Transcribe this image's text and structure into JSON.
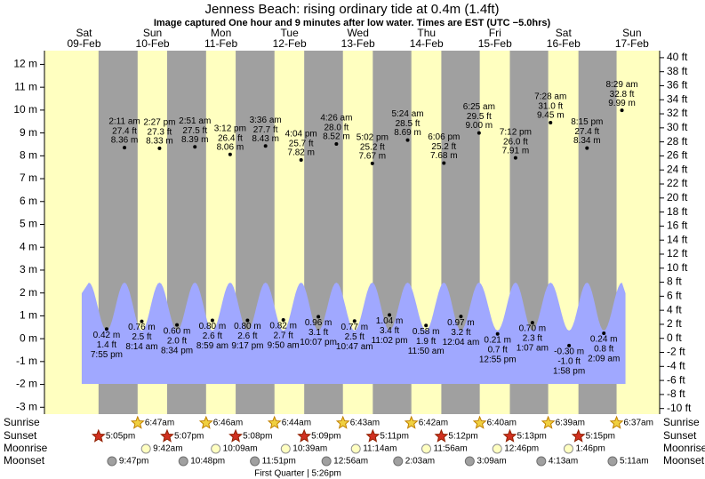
{
  "chart_data": {
    "type": "tide",
    "title": "Jenness Beach: rising  ordinary tide at 0.4m (1.4ft)",
    "subtitle": "Image captured One hour and 9 minutes after low water. Times are EST (UTC −5.0hrs)",
    "ylim": [
      -3.3,
      12.6
    ],
    "yticks": [
      {
        "value": 12,
        "label": "12 m"
      },
      {
        "value": 11,
        "label": "11 m"
      },
      {
        "value": 10,
        "label": "10 m"
      },
      {
        "value": 9,
        "label": "9 m"
      },
      {
        "value": 8,
        "label": "8 m"
      },
      {
        "value": 7,
        "label": "7 m"
      },
      {
        "value": 6,
        "label": "6 m"
      },
      {
        "value": 5,
        "label": "5 m"
      },
      {
        "value": 4,
        "label": "4 m"
      },
      {
        "value": 3,
        "label": "3 m"
      },
      {
        "value": 2,
        "label": "2 m"
      },
      {
        "value": 1,
        "label": "1 m"
      },
      {
        "value": 0,
        "label": "0 m"
      },
      {
        "value": -1,
        "label": "-1 m"
      },
      {
        "value": -2,
        "label": "-2 m"
      },
      {
        "value": -3,
        "label": "-3 m"
      }
    ],
    "y2lim": [
      -10.8,
      41.0
    ],
    "y2ticks": [
      {
        "value": 40,
        "label": "40 ft"
      },
      {
        "value": 38,
        "label": "38 ft"
      },
      {
        "value": 36,
        "label": "36 ft"
      },
      {
        "value": 34,
        "label": "34 ft"
      },
      {
        "value": 32,
        "label": "32 ft"
      },
      {
        "value": 30,
        "label": "30 ft"
      },
      {
        "value": 28,
        "label": "28 ft"
      },
      {
        "value": 26,
        "label": "26 ft"
      },
      {
        "value": 24,
        "label": "24 ft"
      },
      {
        "value": 22,
        "label": "22 ft"
      },
      {
        "value": 20,
        "label": "20 ft"
      },
      {
        "value": 18,
        "label": "18 ft"
      },
      {
        "value": 16,
        "label": "16 ft"
      },
      {
        "value": 14,
        "label": "14 ft"
      },
      {
        "value": 12,
        "label": "12 ft"
      },
      {
        "value": 10,
        "label": "10 ft"
      },
      {
        "value": 8,
        "label": "8 ft"
      },
      {
        "value": 6,
        "label": "6 ft"
      },
      {
        "value": 4,
        "label": "4 ft"
      },
      {
        "value": 2,
        "label": "2 ft"
      },
      {
        "value": 0,
        "label": "0 ft"
      },
      {
        "value": -2,
        "label": "-2 ft"
      },
      {
        "value": -4,
        "label": "-4 ft"
      },
      {
        "value": -6,
        "label": "-6 ft"
      },
      {
        "value": -8,
        "label": "-8 ft"
      },
      {
        "value": -10,
        "label": "-10 ft"
      }
    ],
    "row_labels": {
      "sunrise": "Sunrise",
      "sunset": "Sunset",
      "moonrise": "Moonrise",
      "moonset": "Moonset"
    },
    "day_color": "#ffffc0",
    "night_color": "#a0a0a0",
    "tide_color": "#a0a8ff",
    "date_color": "#cc0000",
    "days": [
      {
        "weekday": "Sat",
        "date": "09-Feb",
        "sunset": "5:05pm",
        "moonset": "9:47pm",
        "tides": [
          {
            "time": "7:55 pm",
            "value": 0.42,
            "value_label": "0.42 m",
            "ft": "1.4 ft"
          }
        ]
      },
      {
        "weekday": "Sun",
        "date": "10-Feb",
        "sunrise": "6:47am",
        "sunset": "5:07pm",
        "moonrise": "9:42am",
        "moonset": "10:48pm",
        "tides": [
          {
            "time": "2:11 am",
            "value": 8.36,
            "value_label": "8.36 m",
            "ft": "27.4 ft"
          },
          {
            "time": "8:14 am",
            "value": 0.76,
            "value_label": "0.76 m",
            "ft": "2.5 ft"
          },
          {
            "time": "2:27 pm",
            "value": 8.33,
            "value_label": "8.33 m",
            "ft": "27.3 ft"
          },
          {
            "time": "8:34 pm",
            "value": 0.6,
            "value_label": "0.60 m",
            "ft": "2.0 ft"
          }
        ]
      },
      {
        "weekday": "Mon",
        "date": "11-Feb",
        "sunrise": "6:46am",
        "sunset": "5:08pm",
        "moonrise": "10:09am",
        "moonset": "11:51pm",
        "tides": [
          {
            "time": "2:51 am",
            "value": 8.39,
            "value_label": "8.39 m",
            "ft": "27.5 ft"
          },
          {
            "time": "8:59 am",
            "value": 0.8,
            "value_label": "0.80 m",
            "ft": "2.6 ft"
          },
          {
            "time": "3:12 pm",
            "value": 8.06,
            "value_label": "8.06 m",
            "ft": "26.4 ft"
          },
          {
            "time": "9:17 pm",
            "value": 0.8,
            "value_label": "0.80 m",
            "ft": "2.6 ft"
          }
        ]
      },
      {
        "weekday": "Tue",
        "date": "12-Feb",
        "sunrise": "6:44am",
        "sunset": "5:09pm",
        "moonrise": "10:39am",
        "moon_phase": {
          "time": "5:26pm",
          "text": "First Quarter | 5:26pm"
        },
        "tides": [
          {
            "time": "3:36 am",
            "value": 8.43,
            "value_label": "8.43 m",
            "ft": "27.7 ft"
          },
          {
            "time": "9:50 am",
            "value": 0.82,
            "value_label": "0.82 m",
            "ft": "2.7 ft"
          },
          {
            "time": "4:04 pm",
            "value": 7.82,
            "value_label": "7.82 m",
            "ft": "25.7 ft"
          },
          {
            "time": "10:07 pm",
            "value": 0.96,
            "value_label": "0.96 m",
            "ft": "3.1 ft"
          }
        ]
      },
      {
        "weekday": "Wed",
        "date": "13-Feb",
        "sunrise": "6:43am",
        "sunset": "5:11pm",
        "moonrise": "11:14am",
        "moonset": "12:56am",
        "tides": [
          {
            "time": "4:26 am",
            "value": 8.52,
            "value_label": "8.52 m",
            "ft": "28.0 ft"
          },
          {
            "time": "10:47 am",
            "value": 0.77,
            "value_label": "0.77 m",
            "ft": "2.5 ft"
          },
          {
            "time": "5:02 pm",
            "value": 7.67,
            "value_label": "7.67 m",
            "ft": "25.2 ft"
          },
          {
            "time": "11:02 pm",
            "value": 1.04,
            "value_label": "1.04 m",
            "ft": "3.4 ft"
          }
        ]
      },
      {
        "weekday": "Thu",
        "date": "14-Feb",
        "sunrise": "6:42am",
        "sunset": "5:12pm",
        "moonrise": "11:56am",
        "moonset": "2:03am",
        "tides": [
          {
            "time": "5:24 am",
            "value": 8.69,
            "value_label": "8.69 m",
            "ft": "28.5 ft"
          },
          {
            "time": "11:50 am",
            "value": 0.58,
            "value_label": "0.58 m",
            "ft": "1.9 ft"
          },
          {
            "time": "6:06 pm",
            "value": 7.68,
            "value_label": "7.68 m",
            "ft": "25.2 ft"
          }
        ]
      },
      {
        "weekday": "Fri",
        "date": "15-Feb",
        "sunrise": "6:40am",
        "sunset": "5:13pm",
        "moonrise": "12:46pm",
        "moonset": "3:09am",
        "tides": [
          {
            "time": "12:04 am",
            "value": 0.97,
            "value_label": "0.97 m",
            "ft": "3.2 ft"
          },
          {
            "time": "6:25 am",
            "value": 9.0,
            "value_label": "9.00 m",
            "ft": "29.5 ft"
          },
          {
            "time": "12:55 pm",
            "value": 0.21,
            "value_label": "0.21 m",
            "ft": "0.7 ft"
          },
          {
            "time": "7:12 pm",
            "value": 7.91,
            "value_label": "7.91 m",
            "ft": "26.0 ft"
          }
        ]
      },
      {
        "weekday": "Sat",
        "date": "16-Feb",
        "sunrise": "6:39am",
        "sunset": "5:15pm",
        "moonrise": "1:46pm",
        "moonset": "4:13am",
        "tides": [
          {
            "time": "1:07 am",
            "value": 0.7,
            "value_label": "0.70 m",
            "ft": "2.3 ft"
          },
          {
            "time": "7:28 am",
            "value": 9.45,
            "value_label": "9.45 m",
            "ft": "31.0 ft"
          },
          {
            "time": "1:58 pm",
            "value": -0.3,
            "value_label": "-0.30 m",
            "ft": "-1.0 ft"
          },
          {
            "time": "8:15 pm",
            "value": 8.34,
            "value_label": "8.34 m",
            "ft": "27.4 ft"
          }
        ]
      },
      {
        "weekday": "Sun",
        "date": "17-Feb",
        "sunrise": "6:37am",
        "moonset": "5:11am",
        "tides": [
          {
            "time": "2:09 am",
            "value": 0.24,
            "value_label": "0.24 m",
            "ft": "0.8 ft"
          },
          {
            "time": "8:29 am",
            "value": 9.99,
            "value_label": "9.99 m",
            "ft": "32.8 ft"
          }
        ]
      }
    ]
  }
}
